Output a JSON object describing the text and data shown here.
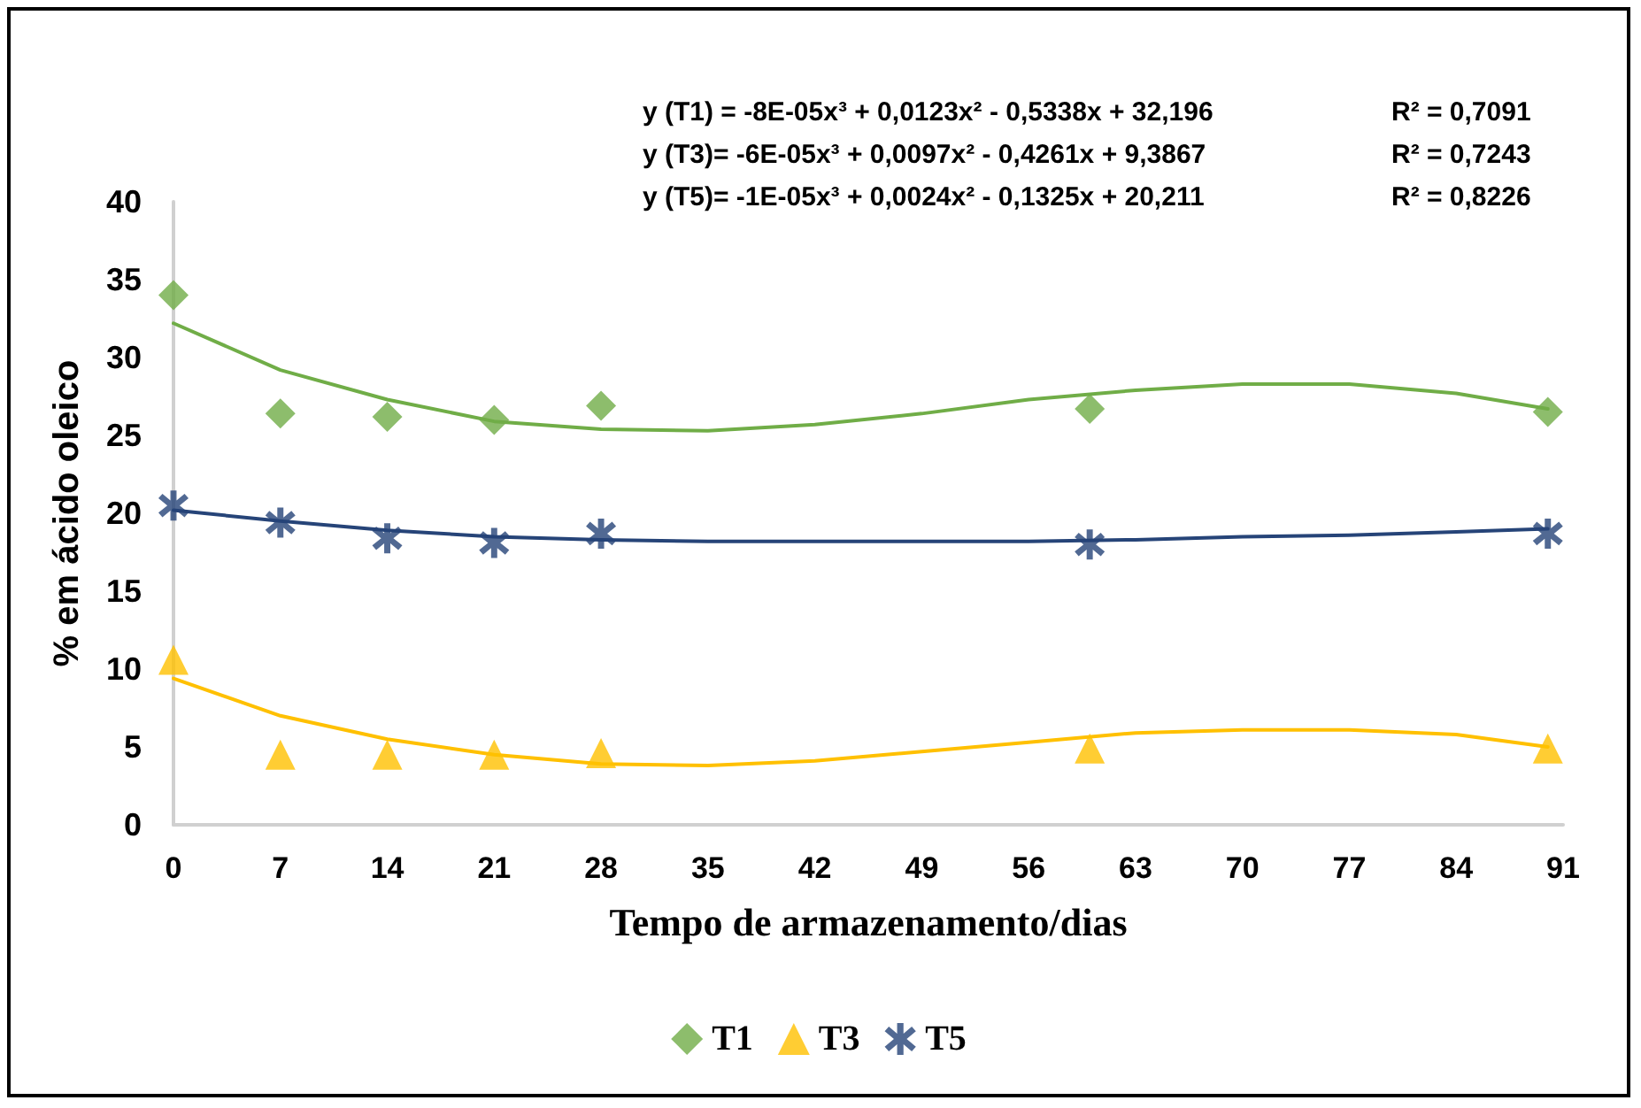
{
  "chart_data": {
    "type": "scatter",
    "xlabel": "Tempo de armazenamento/dias",
    "ylabel": "% em ácido oleico",
    "xlim": [
      0,
      91
    ],
    "xticks": [
      0,
      7,
      14,
      21,
      28,
      35,
      42,
      49,
      56,
      63,
      70,
      77,
      84,
      91
    ],
    "ylim": [
      0,
      40
    ],
    "yticks": [
      0,
      5,
      10,
      15,
      20,
      25,
      30,
      35,
      40
    ],
    "grid": false,
    "legend": "bottom",
    "x": [
      0,
      7,
      14,
      21,
      28,
      60,
      90
    ],
    "series": [
      {
        "name": "T1",
        "color": "#70ad47",
        "marker": "diamond",
        "values": [
          34.0,
          26.4,
          26.2,
          26.0,
          26.9,
          26.7,
          26.5
        ]
      },
      {
        "name": "T3",
        "color": "#ffc000",
        "marker": "triangle",
        "values": [
          10.6,
          4.5,
          4.5,
          4.5,
          4.6,
          4.9,
          4.9
        ]
      },
      {
        "name": "T5",
        "color": "#264478",
        "marker": "star",
        "values": [
          20.5,
          19.4,
          18.4,
          18.1,
          18.7,
          18.0,
          18.7
        ]
      },
      {
        "type": "line",
        "color": "#70ad47",
        "marker": "none",
        "x": [
          0,
          7,
          14,
          21,
          28,
          35,
          42,
          49,
          56,
          63,
          70,
          77,
          84,
          90
        ],
        "values": [
          32.2,
          29.2,
          27.3,
          25.9,
          25.4,
          25.3,
          25.7,
          26.4,
          27.3,
          27.9,
          28.3,
          28.3,
          27.7,
          26.7
        ]
      },
      {
        "type": "line",
        "color": "#ffc000",
        "marker": "none",
        "x": [
          0,
          7,
          14,
          21,
          28,
          35,
          42,
          49,
          56,
          63,
          70,
          77,
          84,
          90
        ],
        "values": [
          9.4,
          7.0,
          5.5,
          4.5,
          3.9,
          3.8,
          4.1,
          4.7,
          5.3,
          5.9,
          6.1,
          6.1,
          5.8,
          5.0
        ]
      },
      {
        "type": "line",
        "color": "#264478",
        "marker": "none",
        "x": [
          0,
          7,
          14,
          21,
          28,
          35,
          42,
          49,
          56,
          63,
          70,
          77,
          84,
          90
        ],
        "values": [
          20.2,
          19.5,
          18.9,
          18.5,
          18.3,
          18.2,
          18.2,
          18.2,
          18.2,
          18.3,
          18.5,
          18.6,
          18.8,
          19.0
        ]
      }
    ],
    "annotations": [
      "y (T1) = -8E-05x³ + 0,0123x² - 0,5338x + 32,196",
      "y (T3)= -6E-05x³ + 0,0097x² - 0,4261x + 9,3867",
      "y (T5)= -1E-05x³ + 0,0024x² - 0,1325x + 20,211",
      "R² = 0,7091",
      "R² = 0,7243",
      "R² = 0,8226"
    ]
  }
}
